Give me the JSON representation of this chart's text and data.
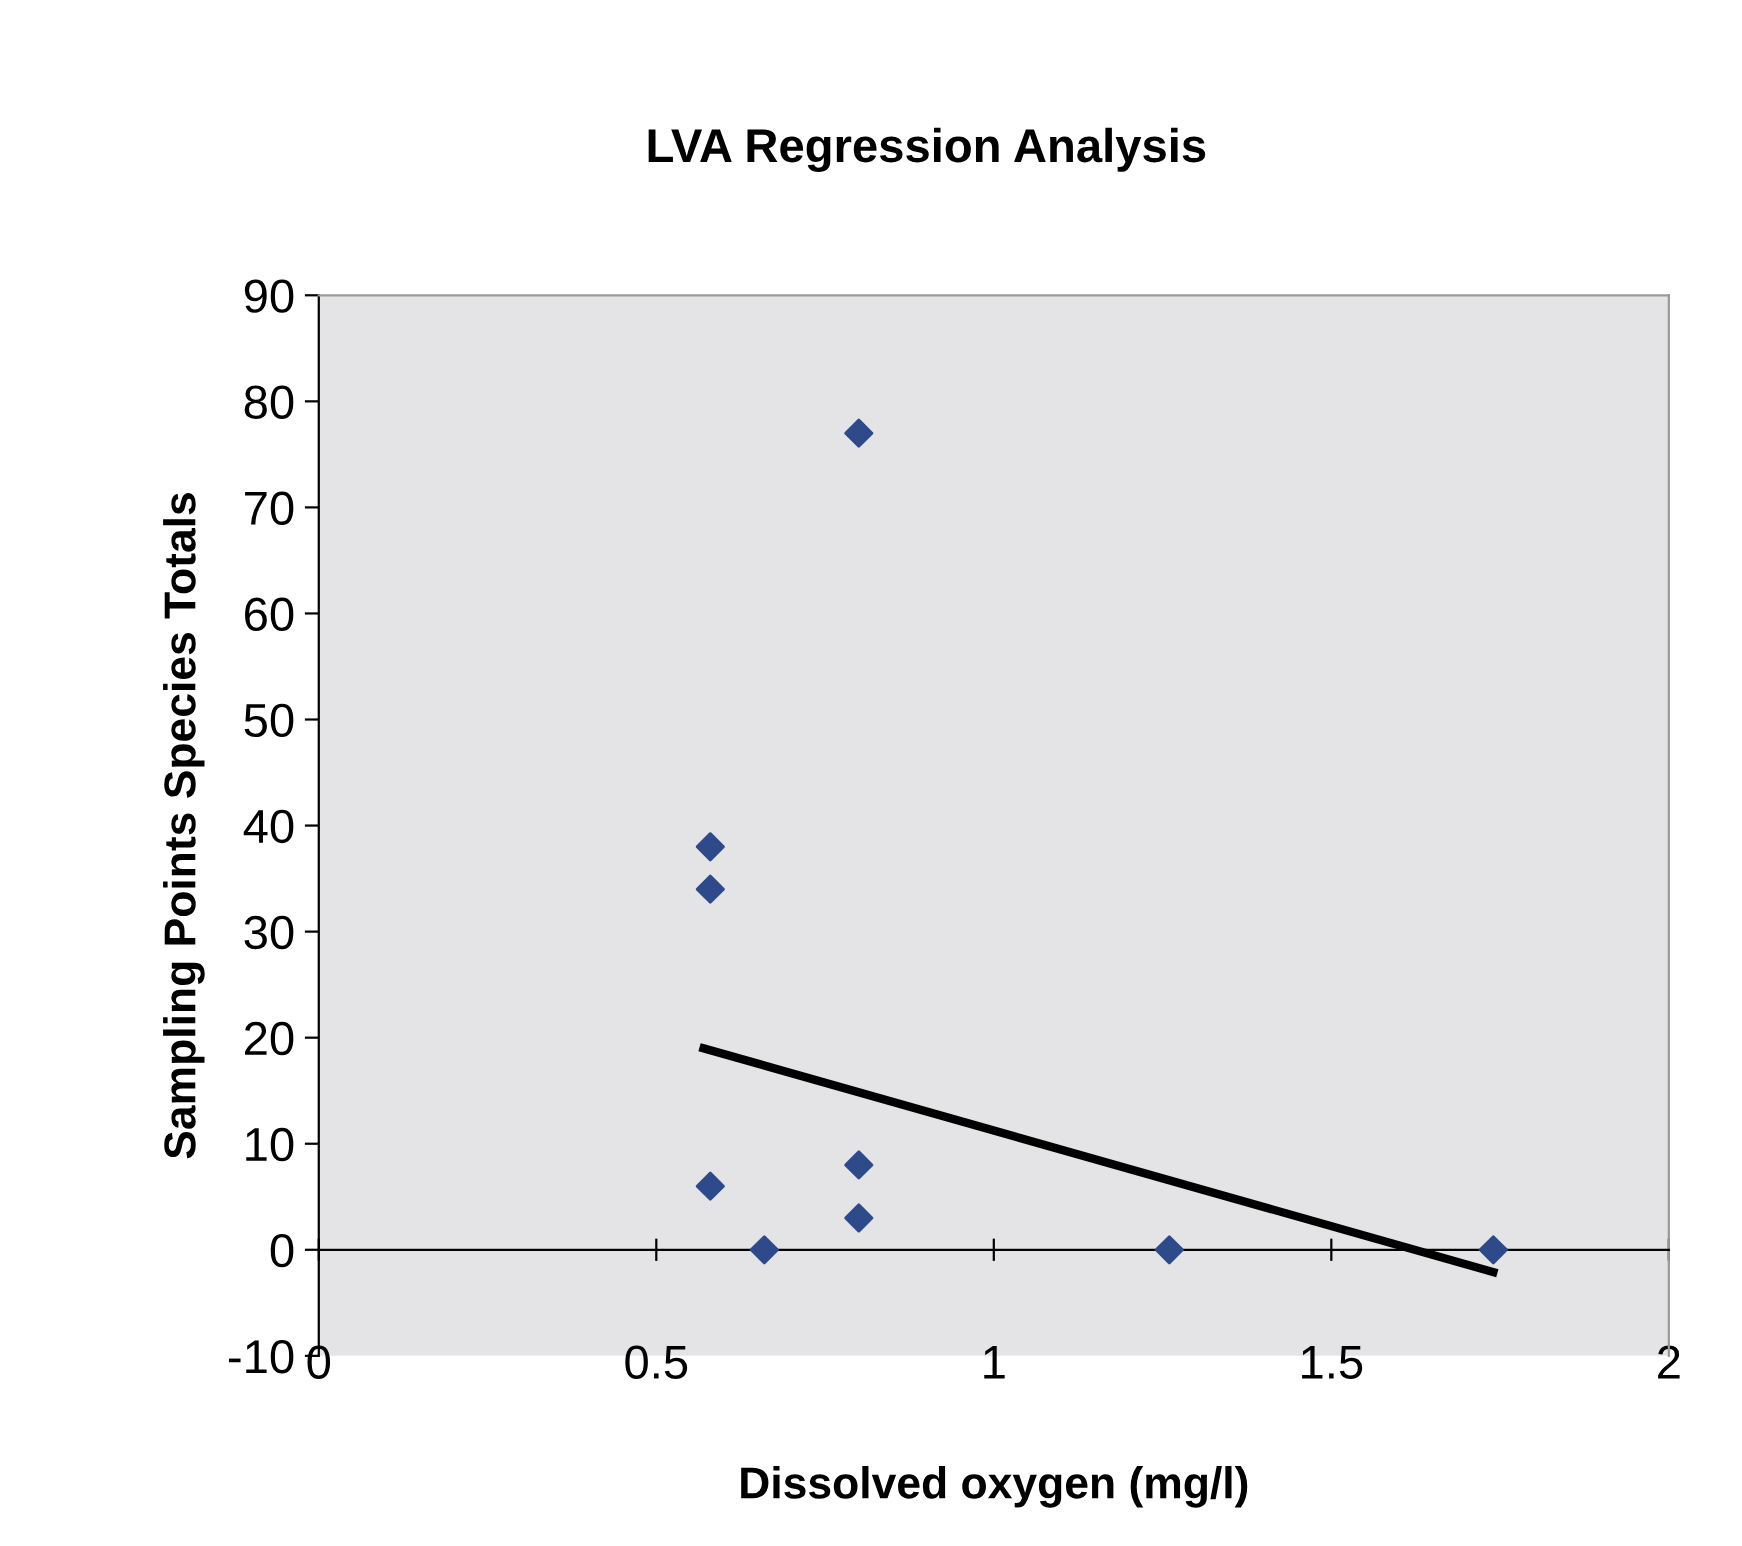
{
  "chart_data": {
    "type": "scatter",
    "title": "LVA Regression Analysis",
    "xlabel": "Dissolved oxygen (mg/l)",
    "ylabel": "Sampling Points Species Totals",
    "x": [
      0.58,
      0.58,
      0.58,
      0.66,
      0.8,
      0.8,
      0.8,
      1.26,
      1.74
    ],
    "series": [
      {
        "color": "#2e4a8a",
        "marker": "diamond",
        "values": [
          38,
          34,
          6,
          0,
          77,
          8,
          3,
          0,
          0
        ]
      },
      {
        "type": "line",
        "color": "#000000",
        "x": [
          0.57,
          1.74
        ],
        "values": [
          19,
          -2.1
        ]
      }
    ],
    "xlim": [
      0,
      2
    ],
    "xticks": [
      0,
      0.5,
      1,
      1.5,
      2
    ],
    "ylim": [
      -10,
      90
    ],
    "yticks": [
      -10,
      0,
      10,
      20,
      30,
      40,
      50,
      60,
      70,
      80,
      90
    ]
  }
}
